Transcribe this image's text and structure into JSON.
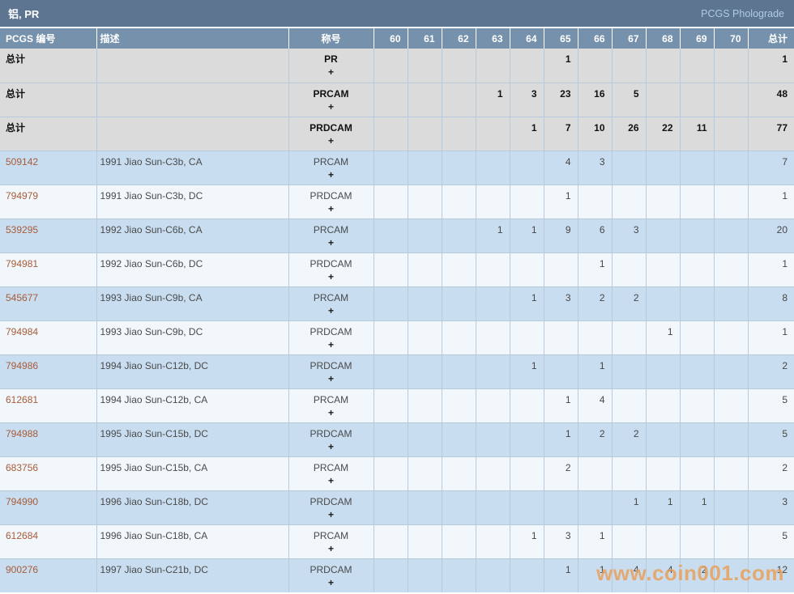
{
  "page": {
    "title": "铝, PR",
    "brand": "PCGS Pholograde"
  },
  "watermark": "www.coin001.com",
  "colors": {
    "title_bar_bg": "#5d7590",
    "header_bg": "#7691ac",
    "summary_row_bg": "#dbdbdb",
    "row_blue_bg": "#c8ddef",
    "row_white_bg": "#f2f7fb",
    "grid_border": "#b6cadb",
    "link_color": "#a85b38",
    "watermark_color": "#e9a05a"
  },
  "table": {
    "columns": {
      "pcgs_no": "PCGS 编号",
      "description": "描述",
      "designation": "称号",
      "grades": [
        "60",
        "61",
        "62",
        "63",
        "64",
        "65",
        "66",
        "67",
        "68",
        "69",
        "70"
      ],
      "total": "总计"
    },
    "rows": [
      {
        "type": "summary",
        "pcgs_no": "总计",
        "description": "",
        "designation": "PR",
        "plus": "+",
        "grades": [
          "",
          "",
          "",
          "",
          "",
          "1",
          "",
          "",
          "",
          "",
          ""
        ],
        "total": "1"
      },
      {
        "type": "summary",
        "pcgs_no": "总计",
        "description": "",
        "designation": "PRCAM",
        "plus": "+",
        "grades": [
          "",
          "",
          "",
          "1",
          "3",
          "23",
          "16",
          "5",
          "",
          "",
          ""
        ],
        "total": "48"
      },
      {
        "type": "summary",
        "pcgs_no": "总计",
        "description": "",
        "designation": "PRDCAM",
        "plus": "+",
        "grades": [
          "",
          "",
          "",
          "",
          "1",
          "7",
          "10",
          "26",
          "22",
          "11",
          ""
        ],
        "total": "77"
      },
      {
        "type": "data",
        "pcgs_no": "509142",
        "description": "1991 Jiao Sun-C3b, CA",
        "designation": "PRCAM",
        "plus": "+",
        "grades": [
          "",
          "",
          "",
          "",
          "",
          "4",
          "3",
          "",
          "",
          "",
          ""
        ],
        "total": "7"
      },
      {
        "type": "data",
        "pcgs_no": "794979",
        "description": "1991 Jiao Sun-C3b, DC",
        "designation": "PRDCAM",
        "plus": "+",
        "grades": [
          "",
          "",
          "",
          "",
          "",
          "1",
          "",
          "",
          "",
          "",
          ""
        ],
        "total": "1"
      },
      {
        "type": "data",
        "pcgs_no": "539295",
        "description": "1992 Jiao Sun-C6b, CA",
        "designation": "PRCAM",
        "plus": "+",
        "grades": [
          "",
          "",
          "",
          "1",
          "1",
          "9",
          "6",
          "3",
          "",
          "",
          ""
        ],
        "total": "20"
      },
      {
        "type": "data",
        "pcgs_no": "794981",
        "description": "1992 Jiao Sun-C6b, DC",
        "designation": "PRDCAM",
        "plus": "+",
        "grades": [
          "",
          "",
          "",
          "",
          "",
          "",
          "1",
          "",
          "",
          "",
          ""
        ],
        "total": "1"
      },
      {
        "type": "data",
        "pcgs_no": "545677",
        "description": "1993 Jiao Sun-C9b, CA",
        "designation": "PRCAM",
        "plus": "+",
        "grades": [
          "",
          "",
          "",
          "",
          "1",
          "3",
          "2",
          "2",
          "",
          "",
          ""
        ],
        "total": "8"
      },
      {
        "type": "data",
        "pcgs_no": "794984",
        "description": "1993 Jiao Sun-C9b, DC",
        "designation": "PRDCAM",
        "plus": "+",
        "grades": [
          "",
          "",
          "",
          "",
          "",
          "",
          "",
          "",
          "1",
          "",
          ""
        ],
        "total": "1"
      },
      {
        "type": "data",
        "pcgs_no": "794986",
        "description": "1994 Jiao Sun-C12b, DC",
        "designation": "PRDCAM",
        "plus": "+",
        "grades": [
          "",
          "",
          "",
          "",
          "1",
          "",
          "1",
          "",
          "",
          "",
          ""
        ],
        "total": "2"
      },
      {
        "type": "data",
        "pcgs_no": "612681",
        "description": "1994 Jiao Sun-C12b, CA",
        "designation": "PRCAM",
        "plus": "+",
        "grades": [
          "",
          "",
          "",
          "",
          "",
          "1",
          "4",
          "",
          "",
          "",
          ""
        ],
        "total": "5"
      },
      {
        "type": "data",
        "pcgs_no": "794988",
        "description": "1995 Jiao Sun-C15b, DC",
        "designation": "PRDCAM",
        "plus": "+",
        "grades": [
          "",
          "",
          "",
          "",
          "",
          "1",
          "2",
          "2",
          "",
          "",
          ""
        ],
        "total": "5"
      },
      {
        "type": "data",
        "pcgs_no": "683756",
        "description": "1995 Jiao Sun-C15b, CA",
        "designation": "PRCAM",
        "plus": "+",
        "grades": [
          "",
          "",
          "",
          "",
          "",
          "2",
          "",
          "",
          "",
          "",
          ""
        ],
        "total": "2"
      },
      {
        "type": "data",
        "pcgs_no": "794990",
        "description": "1996 Jiao Sun-C18b, DC",
        "designation": "PRDCAM",
        "plus": "+",
        "grades": [
          "",
          "",
          "",
          "",
          "",
          "",
          "",
          "1",
          "1",
          "1",
          ""
        ],
        "total": "3"
      },
      {
        "type": "data",
        "pcgs_no": "612684",
        "description": "1996 Jiao Sun-C18b, CA",
        "designation": "PRCAM",
        "plus": "+",
        "grades": [
          "",
          "",
          "",
          "",
          "1",
          "3",
          "1",
          "",
          "",
          "",
          ""
        ],
        "total": "5"
      },
      {
        "type": "data",
        "pcgs_no": "900276",
        "description": "1997 Jiao Sun-C21b, DC",
        "designation": "PRDCAM",
        "plus": "+",
        "grades": [
          "",
          "",
          "",
          "",
          "",
          "1",
          "1",
          "4",
          "4",
          "2",
          ""
        ],
        "total": "12"
      }
    ]
  }
}
